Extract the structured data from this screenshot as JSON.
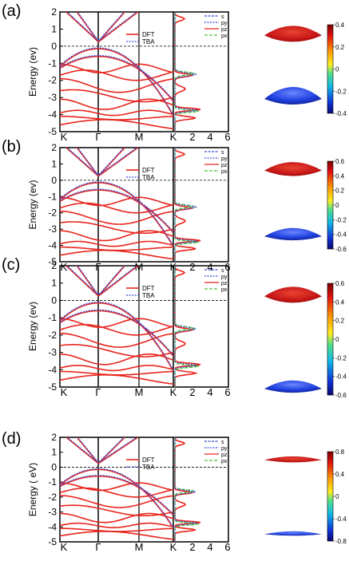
{
  "figure": {
    "panels": [
      {
        "label": "(a)",
        "ylabel": "Energy (ev)",
        "yticks": [
          "2",
          "1",
          "0",
          "-1",
          "-2",
          "-3",
          "-4",
          "-5"
        ],
        "xticks": [
          "K",
          "Γ",
          "M",
          "K"
        ],
        "dos_ticks": [
          "2",
          "4",
          "6"
        ],
        "band_legend": [
          "DFT",
          "TBA"
        ],
        "dos_legend": [
          "s",
          "py",
          "pz",
          "px"
        ],
        "colorbar": [
          "0.4",
          "0.2",
          "0",
          "-0.2",
          "-0.4"
        ]
      },
      {
        "label": "(b)",
        "ylabel": "Energy (ev)",
        "yticks": [
          "2",
          "1",
          "0",
          "-1",
          "-2",
          "-3",
          "-4",
          "-5"
        ],
        "xticks": [
          "K",
          "Γ",
          "M",
          "K"
        ],
        "dos_ticks": [
          "2",
          "4",
          "6"
        ],
        "band_legend": [
          "DFT",
          "TBA"
        ],
        "dos_legend": [
          "s",
          "py",
          "pz",
          "px"
        ],
        "colorbar": [
          "0.6",
          "0.4",
          "0.2",
          "0",
          "-0.2",
          "-0.4",
          "-0.6"
        ]
      },
      {
        "label": "(c)",
        "ylabel": "Energy (ev)",
        "yticks": [
          "2",
          "1",
          "0",
          "-1",
          "-2",
          "-3",
          "-4",
          "-5"
        ],
        "xticks": [
          "K",
          "Γ",
          "M",
          "K"
        ],
        "dos_ticks": [
          "2",
          "4",
          "6"
        ],
        "band_legend": [
          "DFT",
          "TBA"
        ],
        "dos_legend": [
          "s",
          "py",
          "pz",
          "px"
        ],
        "colorbar": [
          "0.6",
          "0.4",
          "0.2",
          "0",
          "-0.2",
          "-0.4",
          "-0.6"
        ]
      },
      {
        "label": "(d)",
        "ylabel": "Energy ( eV)",
        "yticks": [
          "2",
          "1",
          "0",
          "-1",
          "-2",
          "-3",
          "-4",
          "-5"
        ],
        "xticks": [
          "K",
          "Γ",
          "M",
          "K"
        ],
        "dos_ticks": [
          "2",
          "4",
          "6"
        ],
        "band_legend": [
          "DFT",
          "TBA"
        ],
        "dos_legend": [
          "s",
          "py",
          "pz",
          "px"
        ],
        "colorbar": [
          "0.8",
          "0.4",
          "0",
          "-0.4",
          "-0.8"
        ]
      }
    ],
    "colors": {
      "dft": "#e8241c",
      "tba": "#3a4fd8",
      "s": "#3a4fd8",
      "py": "#3a4fd8",
      "pz": "#e8241c",
      "px": "#48c832"
    }
  },
  "chart_data": [
    {
      "type": "line",
      "title": "",
      "xlabel": "",
      "ylabel": "Energy (ev)",
      "ylim": [
        -5,
        2
      ],
      "categories": [
        "K",
        "Γ",
        "M",
        "K"
      ],
      "series": [
        {
          "name": "DFT"
        },
        {
          "name": "TBA"
        }
      ]
    },
    {
      "type": "line",
      "title": "",
      "xlabel": "",
      "ylabel": "Energy (ev)",
      "ylim": [
        -5,
        2
      ],
      "categories": [
        "K",
        "Γ",
        "M",
        "K"
      ],
      "series": [
        {
          "name": "DFT"
        },
        {
          "name": "TBA"
        }
      ]
    },
    {
      "type": "line",
      "title": "",
      "xlabel": "",
      "ylabel": "Energy (ev)",
      "ylim": [
        -5,
        2
      ],
      "categories": [
        "K",
        "Γ",
        "M",
        "K"
      ],
      "series": [
        {
          "name": "DFT"
        },
        {
          "name": "TBA"
        }
      ]
    },
    {
      "type": "line",
      "title": "",
      "xlabel": "",
      "ylabel": "Energy ( eV)",
      "ylim": [
        -5,
        2
      ],
      "categories": [
        "K",
        "Γ",
        "M",
        "K"
      ],
      "series": [
        {
          "name": "DFT"
        },
        {
          "name": "TBA"
        }
      ]
    }
  ]
}
